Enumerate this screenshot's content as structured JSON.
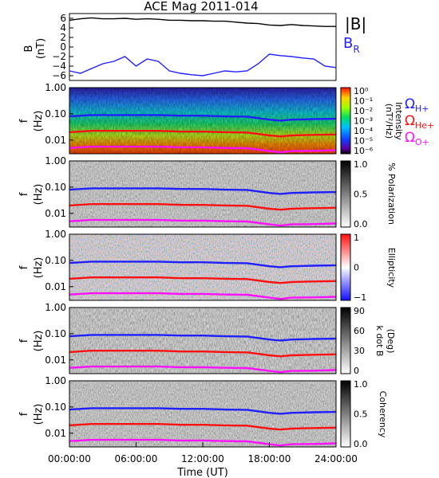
{
  "title": "ACE Mag 2011-014",
  "colors": {
    "black": "#000000",
    "blue": "#1f1fff",
    "red": "#ff1010",
    "magenta": "#ff10ff"
  },
  "time_axis": {
    "label": "Time (UT)",
    "ticks": [
      "00:00:00",
      "06:00:00",
      "12:00:00",
      "18:00:00",
      "24:00:00"
    ],
    "range_hours": [
      0,
      24
    ]
  },
  "legend": {
    "bmag": "|B|",
    "br_main": "B",
    "br_sub": "R",
    "omega": "Ω",
    "h_sub": "H+",
    "he_sub": "He+",
    "o_sub": "O+"
  },
  "panels": {
    "field": {
      "ylabel": "B",
      "yunit": "(nT)",
      "yticks": [
        "6",
        "4",
        "2",
        "0",
        "−2",
        "−4",
        "−6"
      ]
    },
    "freq": {
      "ylabel": "f",
      "yunit": "(Hz)",
      "yticks": [
        "1.00",
        "0.10",
        "0.01"
      ]
    },
    "intensity": {
      "cbar_label": "Intensity",
      "cbar_unit": "(nT²/Hz)",
      "cbar_ticks": [
        "10⁰",
        "10⁻¹",
        "10⁻²",
        "10⁻³",
        "10⁻⁴",
        "10⁻⁵",
        "10⁻⁶"
      ]
    },
    "polarization": {
      "cbar_label": "% Polarization",
      "cbar_ticks": [
        "1.0",
        "0.5",
        "0.0"
      ]
    },
    "ellipticity": {
      "cbar_label": "Ellipticity",
      "cbar_ticks": [
        "1",
        "0",
        "−1"
      ]
    },
    "kdotb": {
      "cbar_label": "k dot B",
      "cbar_unit": "(Deg)",
      "cbar_ticks": [
        "90",
        "60",
        "30",
        "0"
      ]
    },
    "coherency": {
      "cbar_label": "Coherency",
      "cbar_ticks": [
        "1.0",
        "0.5",
        "0.0"
      ]
    }
  },
  "chart_data": {
    "type": "line",
    "title": "ACE Mag 2011-014",
    "xlabel": "Time (UT)",
    "xlim_hours": [
      0,
      24
    ],
    "field_panel": {
      "ylabel": "B (nT)",
      "ylim": [
        -7,
        7
      ],
      "series": [
        {
          "name": "|B|",
          "color": "#000000",
          "x": [
            0,
            1,
            2,
            3,
            4,
            5,
            6,
            7,
            8,
            9,
            10,
            11,
            12,
            13,
            14,
            15,
            16,
            17,
            18,
            19,
            20,
            21,
            22,
            23,
            24
          ],
          "y": [
            5.6,
            5.9,
            6.1,
            5.9,
            5.9,
            6.0,
            5.8,
            5.9,
            5.8,
            5.6,
            5.6,
            5.5,
            5.5,
            5.4,
            5.4,
            5.2,
            5.0,
            4.9,
            4.6,
            4.5,
            4.7,
            4.5,
            4.4,
            4.3,
            4.3
          ]
        },
        {
          "name": "BR",
          "color": "#1f1fff",
          "x": [
            0,
            1,
            2,
            3,
            4,
            5,
            6,
            7,
            8,
            9,
            10,
            11,
            12,
            13,
            14,
            15,
            16,
            17,
            18,
            19,
            20,
            21,
            22,
            23,
            24
          ],
          "y": [
            -5.0,
            -5.5,
            -4.5,
            -3.5,
            -3.0,
            -2.0,
            -4.0,
            -2.5,
            -3.0,
            -5.0,
            -5.5,
            -5.8,
            -6.0,
            -5.5,
            -5.0,
            -5.2,
            -5.0,
            -3.5,
            -1.5,
            -1.8,
            -2.0,
            -2.3,
            -2.5,
            -4.0,
            -4.3
          ]
        }
      ]
    },
    "spectrogram_panels": {
      "yscale": "log",
      "ylim_hz": [
        0.003,
        1.0
      ],
      "gyrofrequency_lines": [
        {
          "name": "ΩH+",
          "color": "#1f1fff",
          "x": [
            0,
            2,
            4,
            6,
            8,
            10,
            12,
            14,
            16,
            18,
            19,
            20,
            22,
            24
          ],
          "y": [
            0.08,
            0.09,
            0.09,
            0.09,
            0.09,
            0.085,
            0.085,
            0.08,
            0.078,
            0.06,
            0.055,
            0.06,
            0.063,
            0.065
          ]
        },
        {
          "name": "ΩHe+",
          "color": "#ff1010",
          "x": [
            0,
            2,
            4,
            6,
            8,
            10,
            12,
            14,
            16,
            18,
            19,
            20,
            22,
            24
          ],
          "y": [
            0.02,
            0.0225,
            0.0225,
            0.0225,
            0.0225,
            0.021,
            0.021,
            0.02,
            0.0195,
            0.015,
            0.0138,
            0.015,
            0.0158,
            0.0163
          ]
        },
        {
          "name": "ΩO+",
          "color": "#ff10ff",
          "x": [
            0,
            2,
            4,
            6,
            8,
            10,
            12,
            14,
            16,
            18,
            19,
            20,
            22,
            24
          ],
          "y": [
            0.005,
            0.0056,
            0.0056,
            0.0056,
            0.0056,
            0.0053,
            0.0053,
            0.005,
            0.0049,
            0.0038,
            0.0034,
            0.0038,
            0.0039,
            0.0041
          ]
        }
      ]
    }
  }
}
